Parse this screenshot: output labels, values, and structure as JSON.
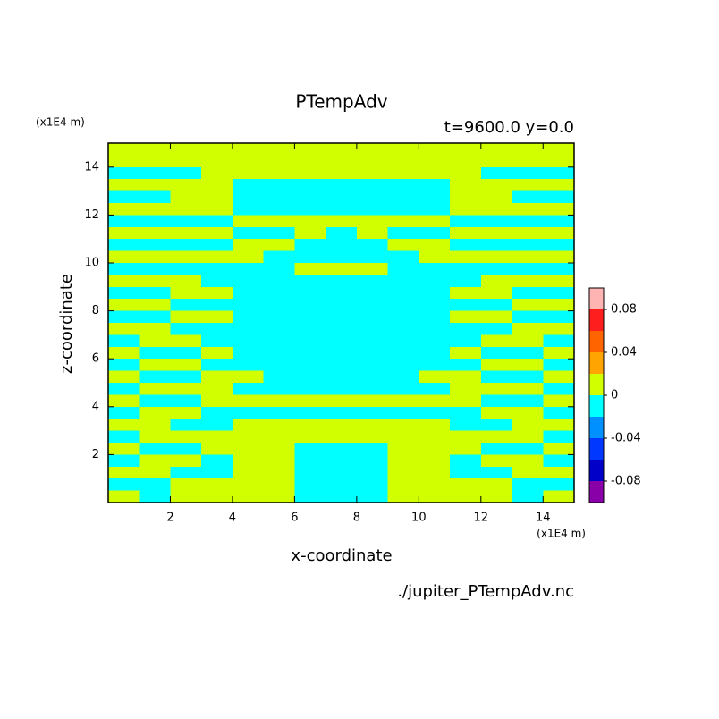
{
  "chart_data": {
    "type": "contour",
    "title": "PTempAdv",
    "subtitle": "t=9600.0 y=0.0",
    "x_label": "x-coordinate",
    "y_label": "z-coordinate",
    "x_unit": "(x1E4 m)",
    "y_unit": "(x1E4 m)",
    "source": "./jupiter_PTempAdv.nc",
    "xlim": [
      0,
      15
    ],
    "ylim": [
      0,
      15
    ],
    "xticks": [
      2,
      4,
      6,
      8,
      10,
      12,
      14
    ],
    "yticks": [
      2,
      4,
      6,
      8,
      10,
      12,
      14
    ],
    "x": [
      0.5,
      1.5,
      2.5,
      3.5,
      4.5,
      5.5,
      6.5,
      7.5,
      8.5,
      9.5,
      10.5,
      11.5,
      12.5,
      13.5,
      14.5
    ],
    "z": [
      14.75,
      14.25,
      13.75,
      13.25,
      12.75,
      12.25,
      11.75,
      11.25,
      10.75,
      10.25,
      9.75,
      9.25,
      8.75,
      8.25,
      7.75,
      7.25,
      6.75,
      6.25,
      5.75,
      5.25,
      4.75,
      4.25,
      3.75,
      3.25,
      2.75,
      2.25,
      1.75,
      1.25,
      0.75,
      0.25
    ],
    "levels": [
      -0.1,
      -0.08,
      -0.06,
      -0.04,
      -0.02,
      0,
      0.02,
      0.04,
      0.06,
      0.08,
      0.1
    ],
    "colors": [
      "#8a00a8",
      "#0000c8",
      "#0038ff",
      "#0090ff",
      "#00ffff",
      "#d2ff00",
      "#ffa400",
      "#ff6400",
      "#ff1e1e",
      "#ffb4b4"
    ],
    "colorbar_ticks": [
      -0.08,
      -0.04,
      0,
      0.04,
      0.08
    ],
    "values": [
      [
        0.01,
        0.01,
        0.01,
        0.01,
        0.01,
        0.01,
        0.01,
        0.01,
        0.01,
        0.01,
        0.01,
        0.01,
        0.01,
        0.01,
        0.01
      ],
      [
        0.01,
        0.01,
        0.01,
        0.01,
        0.01,
        0.01,
        0.01,
        0.01,
        0.01,
        0.01,
        0.01,
        0.01,
        0.01,
        0.01,
        0.01
      ],
      [
        -0.01,
        -0.01,
        -0.01,
        0.01,
        0.01,
        0.01,
        0.01,
        0.01,
        0.01,
        0.01,
        0.01,
        0.01,
        -0.01,
        -0.01,
        -0.01
      ],
      [
        0.01,
        0.01,
        0.01,
        0.01,
        -0.01,
        -0.01,
        -0.01,
        -0.01,
        -0.01,
        -0.01,
        -0.01,
        0.01,
        0.01,
        0.01,
        0.01
      ],
      [
        -0.01,
        -0.01,
        0.01,
        0.01,
        -0.01,
        -0.01,
        -0.01,
        -0.01,
        -0.01,
        -0.01,
        -0.01,
        0.01,
        0.01,
        -0.01,
        -0.01
      ],
      [
        0.01,
        0.01,
        0.01,
        0.01,
        -0.01,
        -0.01,
        -0.01,
        -0.01,
        -0.01,
        -0.01,
        -0.01,
        0.01,
        0.01,
        0.01,
        0.01
      ],
      [
        -0.01,
        -0.01,
        -0.01,
        -0.01,
        0.01,
        0.01,
        0.01,
        0.01,
        0.01,
        0.01,
        0.01,
        -0.01,
        -0.01,
        -0.01,
        -0.01
      ],
      [
        0.01,
        0.01,
        0.01,
        0.01,
        -0.01,
        -0.01,
        0.01,
        -0.01,
        0.01,
        -0.01,
        -0.01,
        0.01,
        0.01,
        0.01,
        0.01
      ],
      [
        -0.01,
        -0.01,
        -0.01,
        -0.01,
        0.01,
        0.01,
        -0.01,
        -0.01,
        -0.01,
        0.01,
        0.01,
        -0.01,
        -0.01,
        -0.01,
        -0.01
      ],
      [
        0.01,
        0.01,
        0.01,
        0.01,
        0.01,
        -0.01,
        -0.01,
        -0.01,
        -0.01,
        -0.01,
        0.01,
        0.01,
        0.01,
        0.01,
        0.01
      ],
      [
        -0.01,
        -0.01,
        -0.01,
        -0.01,
        -0.01,
        -0.01,
        0.01,
        0.01,
        0.01,
        -0.01,
        -0.01,
        -0.01,
        -0.01,
        -0.01,
        -0.01
      ],
      [
        0.01,
        0.01,
        0.01,
        -0.01,
        -0.01,
        -0.01,
        -0.01,
        -0.01,
        -0.01,
        -0.01,
        -0.01,
        -0.01,
        0.01,
        0.01,
        0.01
      ],
      [
        -0.01,
        -0.01,
        0.01,
        0.01,
        -0.01,
        -0.01,
        -0.01,
        -0.01,
        -0.01,
        -0.01,
        -0.01,
        0.01,
        0.01,
        -0.01,
        -0.01
      ],
      [
        0.01,
        0.01,
        -0.01,
        -0.01,
        -0.01,
        -0.01,
        -0.01,
        -0.01,
        -0.01,
        -0.01,
        -0.01,
        -0.01,
        -0.01,
        0.01,
        0.01
      ],
      [
        -0.01,
        -0.01,
        0.01,
        0.01,
        -0.01,
        -0.01,
        -0.01,
        -0.01,
        -0.01,
        -0.01,
        -0.01,
        0.01,
        0.01,
        -0.01,
        -0.01
      ],
      [
        0.01,
        0.01,
        -0.01,
        -0.01,
        -0.01,
        -0.01,
        -0.01,
        -0.01,
        -0.01,
        -0.01,
        -0.01,
        -0.01,
        -0.01,
        0.01,
        0.01
      ],
      [
        -0.01,
        0.01,
        0.01,
        -0.01,
        -0.01,
        -0.01,
        -0.01,
        -0.01,
        -0.01,
        -0.01,
        -0.01,
        -0.01,
        0.01,
        0.01,
        -0.01
      ],
      [
        0.01,
        -0.01,
        -0.01,
        0.01,
        -0.01,
        -0.01,
        -0.01,
        -0.01,
        -0.01,
        -0.01,
        -0.01,
        0.01,
        -0.01,
        -0.01,
        0.01
      ],
      [
        -0.01,
        0.01,
        0.01,
        -0.01,
        -0.01,
        -0.01,
        -0.01,
        -0.01,
        -0.01,
        -0.01,
        -0.01,
        -0.01,
        0.01,
        0.01,
        -0.01
      ],
      [
        0.01,
        -0.01,
        -0.01,
        0.01,
        0.01,
        -0.01,
        -0.01,
        -0.01,
        -0.01,
        -0.01,
        0.01,
        0.01,
        -0.01,
        -0.01,
        0.01
      ],
      [
        -0.01,
        0.01,
        0.01,
        0.01,
        -0.01,
        -0.01,
        -0.01,
        -0.01,
        -0.01,
        -0.01,
        -0.01,
        0.01,
        0.01,
        0.01,
        -0.01
      ],
      [
        0.01,
        -0.01,
        -0.01,
        0.01,
        0.01,
        0.01,
        0.01,
        0.01,
        0.01,
        0.01,
        0.01,
        0.01,
        -0.01,
        -0.01,
        0.01
      ],
      [
        -0.01,
        0.01,
        0.01,
        -0.01,
        -0.01,
        -0.01,
        -0.01,
        -0.01,
        -0.01,
        -0.01,
        -0.01,
        -0.01,
        0.01,
        0.01,
        -0.01
      ],
      [
        0.01,
        0.01,
        -0.01,
        -0.01,
        0.01,
        0.01,
        0.01,
        0.01,
        0.01,
        0.01,
        0.01,
        -0.01,
        -0.01,
        0.01,
        0.01
      ],
      [
        -0.01,
        0.01,
        0.01,
        0.01,
        0.01,
        0.01,
        0.01,
        0.01,
        0.01,
        0.01,
        0.01,
        0.01,
        0.01,
        0.01,
        -0.01
      ],
      [
        0.01,
        -0.01,
        -0.01,
        0.01,
        0.01,
        0.01,
        -0.01,
        -0.01,
        -0.01,
        0.01,
        0.01,
        0.01,
        -0.01,
        -0.01,
        0.01
      ],
      [
        -0.01,
        0.01,
        0.01,
        -0.01,
        0.01,
        0.01,
        -0.01,
        -0.01,
        -0.01,
        0.01,
        0.01,
        -0.01,
        0.01,
        0.01,
        -0.01
      ],
      [
        0.01,
        0.01,
        -0.01,
        -0.01,
        0.01,
        0.01,
        -0.01,
        -0.01,
        -0.01,
        0.01,
        0.01,
        -0.01,
        -0.01,
        0.01,
        0.01
      ],
      [
        -0.01,
        -0.01,
        0.01,
        0.01,
        0.01,
        0.01,
        -0.01,
        -0.01,
        -0.01,
        0.01,
        0.01,
        0.01,
        0.01,
        -0.01,
        -0.01
      ],
      [
        0.01,
        -0.01,
        0.01,
        0.01,
        0.01,
        0.01,
        -0.01,
        -0.01,
        -0.01,
        0.01,
        0.01,
        0.01,
        0.01,
        -0.01,
        0.01
      ]
    ]
  }
}
